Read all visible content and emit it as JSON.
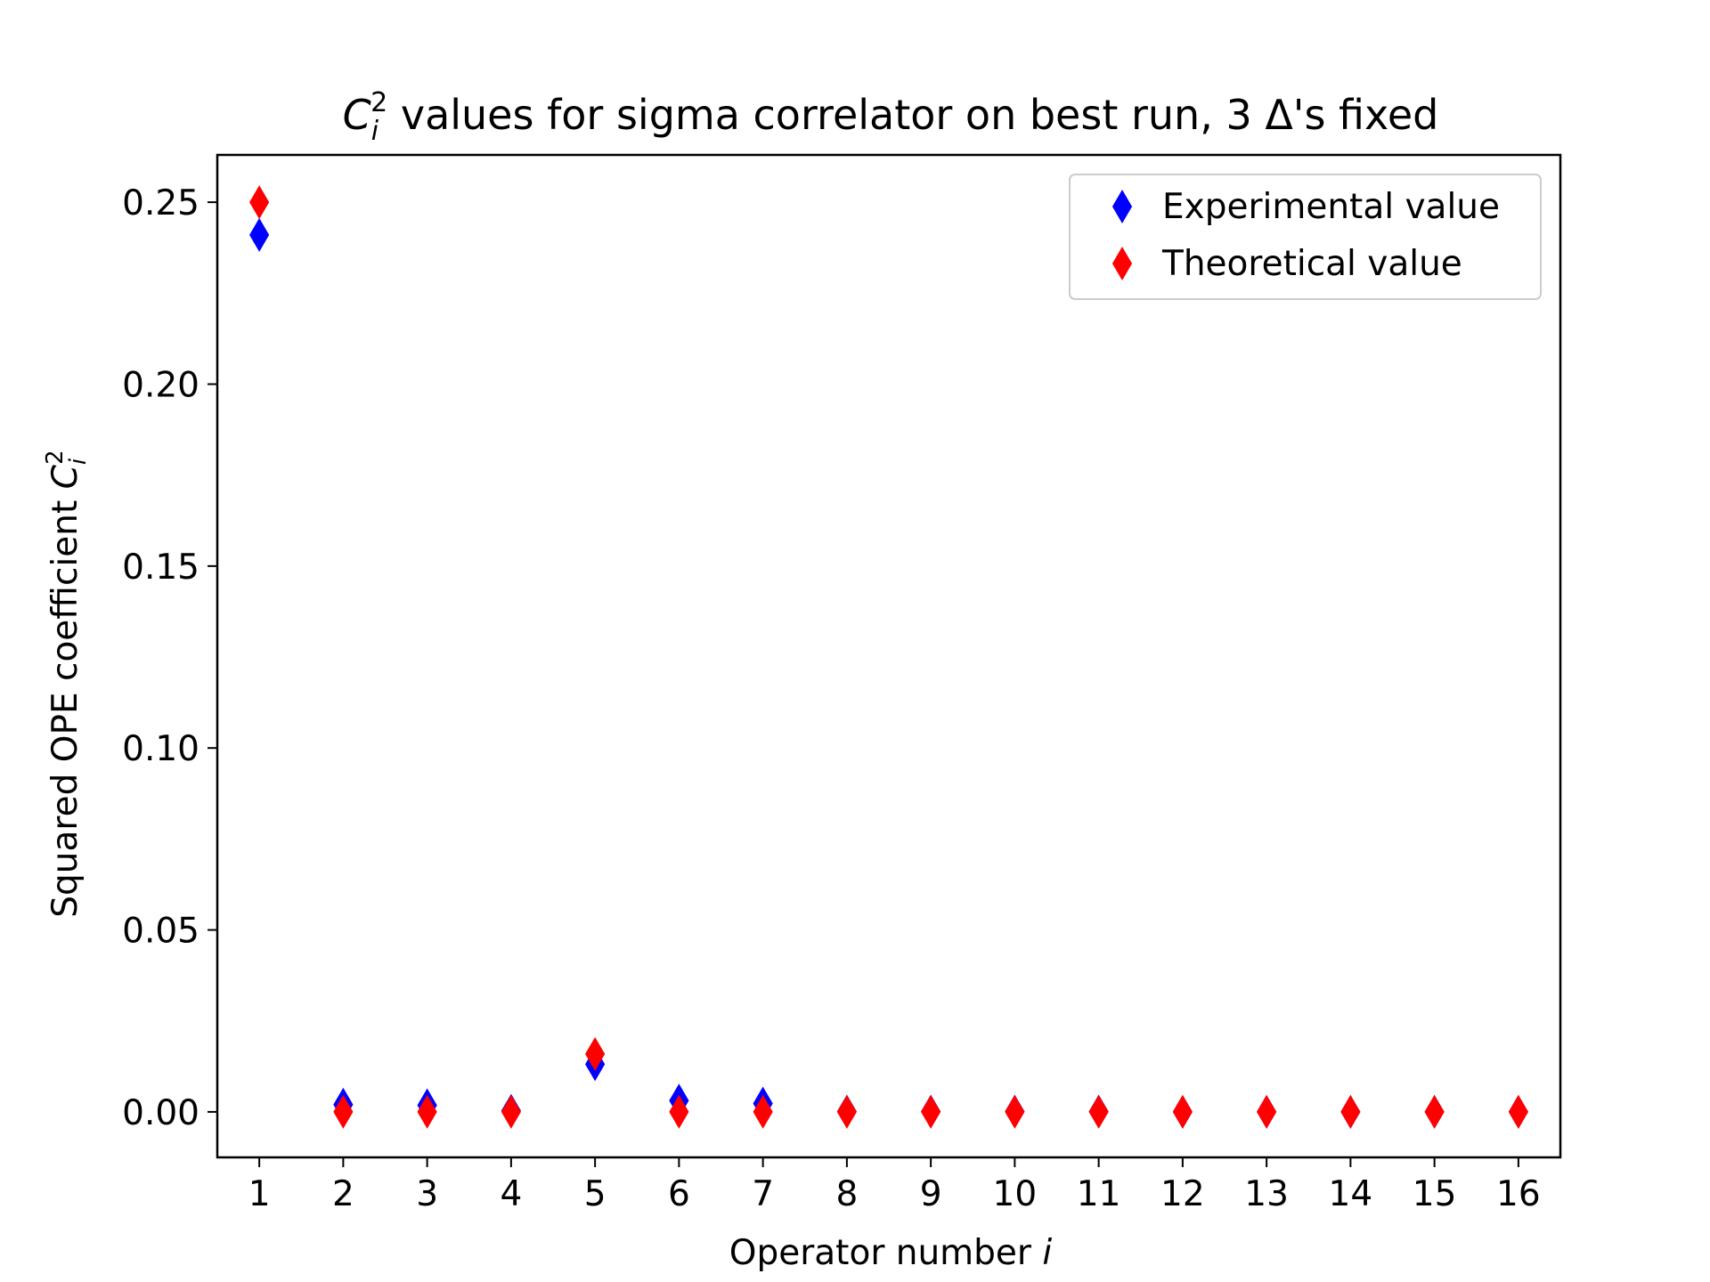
{
  "chart_data": {
    "type": "scatter",
    "title": {
      "prefix": "C",
      "sub": "i",
      "sup": "2",
      "text": " values for sigma correlator on best run, 3 Δ's fixed"
    },
    "xlabel": {
      "text": "Operator number ",
      "italic": "i"
    },
    "ylabel": {
      "text": "Squared OPE coefficient ",
      "sym": "C",
      "sub": "i",
      "sup": "2"
    },
    "xlim": [
      0.5,
      16.5
    ],
    "ylim": [
      -0.0125,
      0.263
    ],
    "x_ticks": [
      1,
      2,
      3,
      4,
      5,
      6,
      7,
      8,
      9,
      10,
      11,
      12,
      13,
      14,
      15,
      16
    ],
    "y_ticks": [
      0.0,
      0.05,
      0.1,
      0.15,
      0.2,
      0.25
    ],
    "y_tick_labels": [
      "0.00",
      "0.05",
      "0.10",
      "0.15",
      "0.20",
      "0.25"
    ],
    "grid": false,
    "legend_position": "top-right",
    "marker": "thin-diamond",
    "series": [
      {
        "name": "Experimental value",
        "color": "#0000ff",
        "x": [
          1,
          2,
          3,
          4,
          5,
          6,
          7,
          8,
          9,
          10,
          11,
          12,
          13,
          14,
          15,
          16
        ],
        "y": [
          0.241,
          0.002,
          0.0018,
          0.0003,
          0.0131,
          0.0031,
          0.0023,
          0.0001,
          0.0001,
          0.0001,
          0.0001,
          0.0,
          0.0,
          0.0,
          0.0,
          0.0
        ]
      },
      {
        "name": "Theoretical value",
        "color": "#ff0000",
        "x": [
          1,
          2,
          3,
          4,
          5,
          6,
          7,
          8,
          9,
          10,
          11,
          12,
          13,
          14,
          15,
          16
        ],
        "y": [
          0.25,
          0.0,
          0.0,
          0.0,
          0.0159,
          0.0,
          0.0,
          0.0,
          0.0,
          0.0,
          0.0,
          0.0,
          0.0,
          0.0,
          0.0,
          0.0
        ]
      }
    ]
  }
}
